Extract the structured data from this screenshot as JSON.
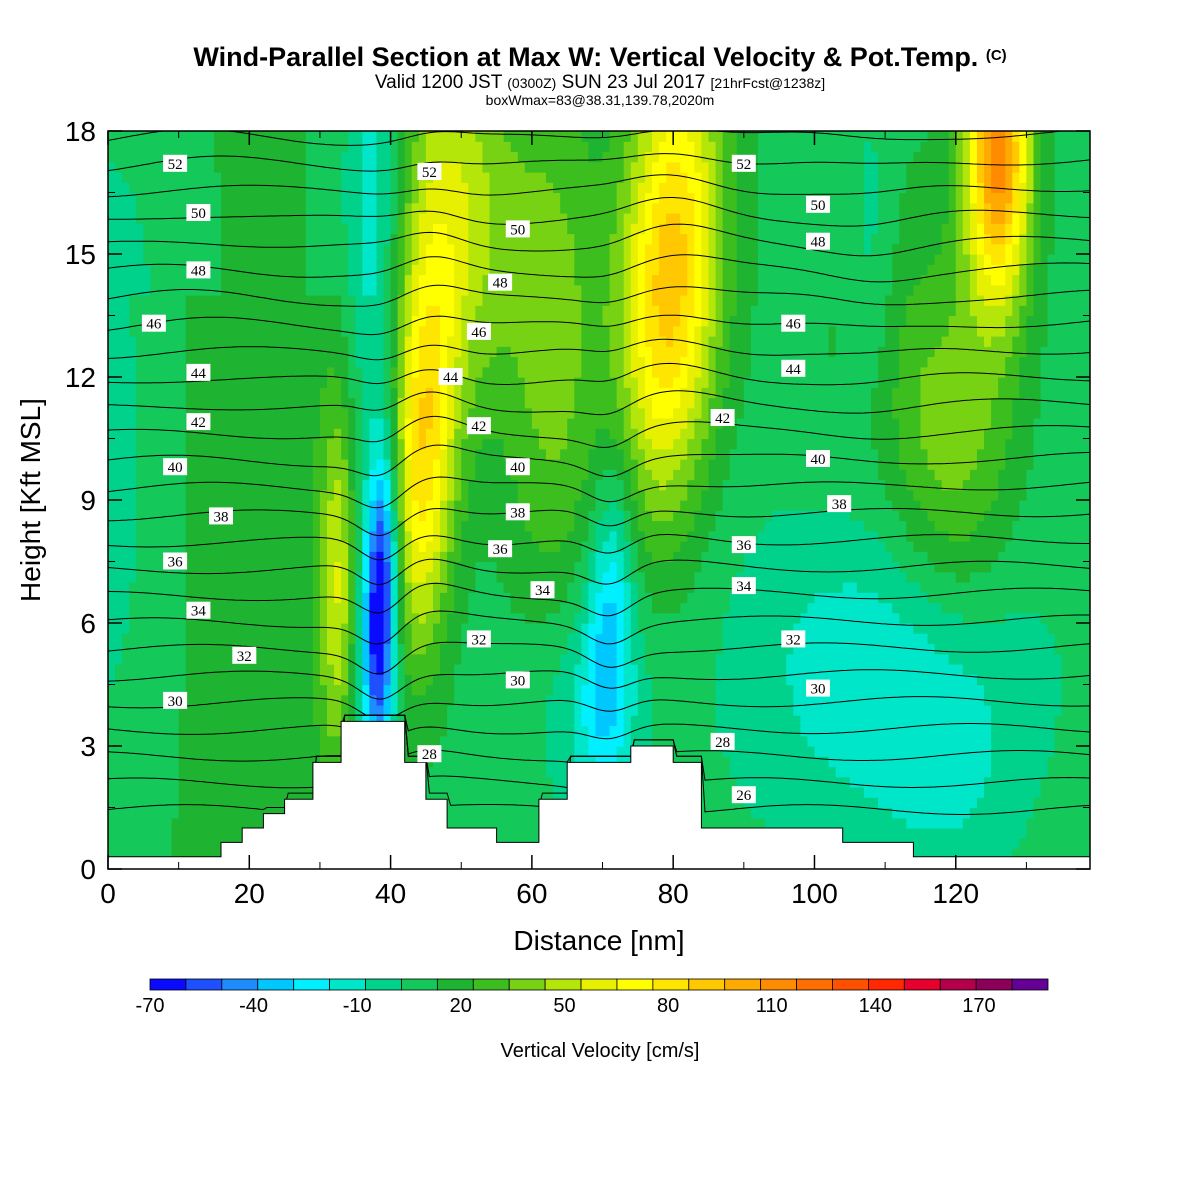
{
  "title": {
    "main": "Wind-Parallel Section at Max W: Vertical Velocity & Pot.Temp.",
    "main_mark": "(C)",
    "line2_a": "Valid 1200 JST",
    "line2_b": "(0300Z)",
    "line2_c": "SUN 23 Jul 2017",
    "line2_d": "[21hrFcst@1238z]",
    "line3": "boxWmax=83@38.31,139.78,2020m"
  },
  "chart_data": {
    "type": "heatmap",
    "xlabel": "Distance [nm]",
    "ylabel": "Height [Kft MSL]",
    "xlim": [
      0,
      139
    ],
    "ylim": [
      0,
      18
    ],
    "xticks": [
      0,
      20,
      40,
      60,
      80,
      100,
      120
    ],
    "yticks": [
      0,
      3,
      6,
      9,
      12,
      15,
      18
    ],
    "colorbar": {
      "label": "Vertical Velocity [cm/s]",
      "tick_labels": [
        -70,
        -40,
        -10,
        20,
        50,
        80,
        110,
        140,
        170
      ],
      "range": [
        -70,
        190
      ],
      "colors": [
        "#0a0aff",
        "#1e50ff",
        "#1e8cff",
        "#00c8ff",
        "#00f0ff",
        "#00e6c8",
        "#00d28c",
        "#14c85a",
        "#1eb432",
        "#3cbe1e",
        "#78d214",
        "#b4e60a",
        "#e6f000",
        "#ffff00",
        "#ffe600",
        "#ffc800",
        "#ffaa00",
        "#ff8c00",
        "#ff6e00",
        "#ff5000",
        "#ff2800",
        "#e6002d",
        "#b4004b",
        "#8c005a",
        "#640096"
      ]
    },
    "highlight_features": [
      {
        "name": "strong downdraft",
        "x": 38.5,
        "base": 3.6,
        "top": 10.2,
        "w_min": -70
      },
      {
        "name": "downdraft",
        "x": 71,
        "base": 3.0,
        "top": 11.5,
        "w_min": -20
      },
      {
        "name": "updraft",
        "x": 45,
        "top": 18,
        "w_max": 90
      },
      {
        "name": "updraft",
        "x": 79,
        "top": 18,
        "w_max": 95
      },
      {
        "name": "updraft",
        "x": 126,
        "top": 18,
        "w_max": 110
      }
    ],
    "terrain": {
      "x": [
        0,
        16,
        16,
        19,
        19,
        22,
        22,
        25,
        25,
        29,
        29,
        33,
        33,
        42,
        42,
        45,
        45,
        48,
        48,
        55,
        55,
        61,
        61,
        65,
        65,
        74,
        74,
        80,
        80,
        84,
        84,
        104,
        104,
        114,
        114,
        139
      ],
      "height": [
        0.3,
        0.3,
        0.65,
        0.65,
        1.0,
        1.0,
        1.35,
        1.35,
        1.7,
        1.7,
        2.6,
        2.6,
        3.6,
        3.6,
        2.6,
        2.6,
        1.7,
        1.7,
        1.0,
        1.0,
        0.65,
        0.65,
        1.7,
        1.7,
        2.6,
        2.6,
        3.0,
        3.0,
        2.6,
        2.6,
        1.0,
        1.0,
        0.65,
        0.65,
        0.3,
        0.3
      ]
    },
    "isentropes_celsius": [
      26,
      27,
      28,
      29,
      30,
      31,
      32,
      33,
      34,
      35,
      36,
      37,
      38,
      39,
      40,
      41,
      42,
      43,
      44,
      45,
      46,
      47,
      48,
      49,
      50,
      51,
      52
    ],
    "contour_labels": [
      {
        "text": "52",
        "x": 9.5,
        "y": 17.2
      },
      {
        "text": "52",
        "x": 45.5,
        "y": 17.0
      },
      {
        "text": "52",
        "x": 90,
        "y": 17.2
      },
      {
        "text": "50",
        "x": 12.8,
        "y": 16.0
      },
      {
        "text": "50",
        "x": 58,
        "y": 15.6
      },
      {
        "text": "50",
        "x": 100.5,
        "y": 16.2
      },
      {
        "text": "48",
        "x": 12.8,
        "y": 14.6
      },
      {
        "text": "48",
        "x": 55.5,
        "y": 14.3
      },
      {
        "text": "48",
        "x": 100.5,
        "y": 15.3
      },
      {
        "text": "46",
        "x": 6.5,
        "y": 13.3
      },
      {
        "text": "46",
        "x": 52.5,
        "y": 13.1
      },
      {
        "text": "46",
        "x": 97,
        "y": 13.3
      },
      {
        "text": "44",
        "x": 12.8,
        "y": 12.1
      },
      {
        "text": "44",
        "x": 48.5,
        "y": 12.0
      },
      {
        "text": "44",
        "x": 97,
        "y": 12.2
      },
      {
        "text": "42",
        "x": 12.8,
        "y": 10.9
      },
      {
        "text": "42",
        "x": 52.5,
        "y": 10.8
      },
      {
        "text": "42",
        "x": 87,
        "y": 11.0
      },
      {
        "text": "40",
        "x": 9.5,
        "y": 9.8
      },
      {
        "text": "40",
        "x": 58,
        "y": 9.8
      },
      {
        "text": "40",
        "x": 100.5,
        "y": 10.0
      },
      {
        "text": "38",
        "x": 16,
        "y": 8.6
      },
      {
        "text": "38",
        "x": 58,
        "y": 8.7
      },
      {
        "text": "38",
        "x": 103.5,
        "y": 8.9
      },
      {
        "text": "36",
        "x": 9.5,
        "y": 7.5
      },
      {
        "text": "36",
        "x": 55.5,
        "y": 7.8
      },
      {
        "text": "36",
        "x": 90,
        "y": 7.9
      },
      {
        "text": "34",
        "x": 12.8,
        "y": 6.3
      },
      {
        "text": "34",
        "x": 61.5,
        "y": 6.8
      },
      {
        "text": "34",
        "x": 90,
        "y": 6.9
      },
      {
        "text": "32",
        "x": 19.3,
        "y": 5.2
      },
      {
        "text": "32",
        "x": 52.5,
        "y": 5.6
      },
      {
        "text": "32",
        "x": 97,
        "y": 5.6
      },
      {
        "text": "30",
        "x": 9.5,
        "y": 4.1
      },
      {
        "text": "30",
        "x": 58,
        "y": 4.6
      },
      {
        "text": "30",
        "x": 100.5,
        "y": 4.4
      },
      {
        "text": "28",
        "x": 45.5,
        "y": 2.8
      },
      {
        "text": "28",
        "x": 87,
        "y": 3.1
      },
      {
        "text": "26",
        "x": 90,
        "y": 1.8
      }
    ]
  }
}
